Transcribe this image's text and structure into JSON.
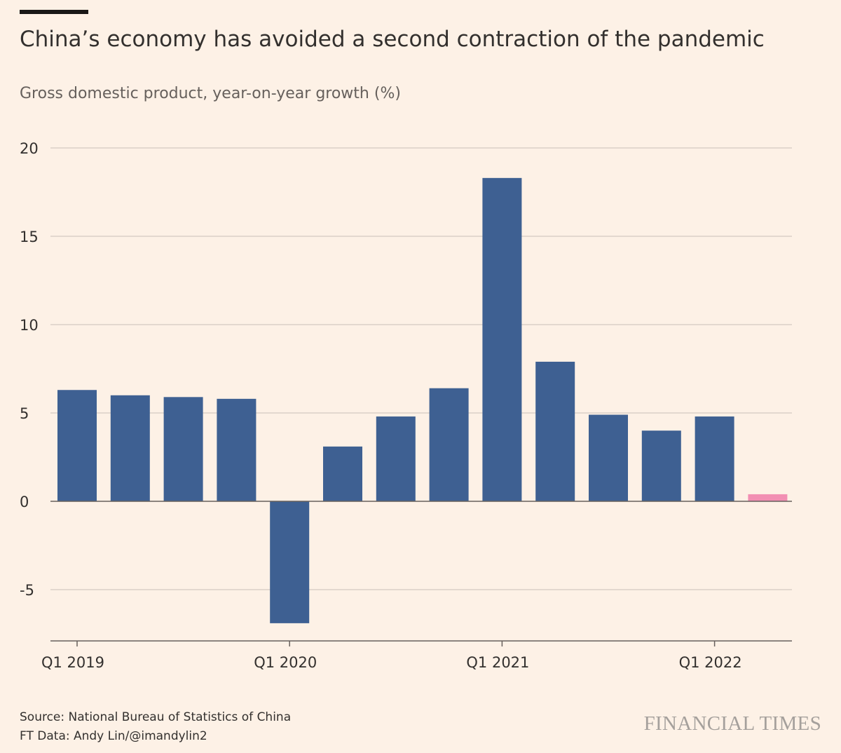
{
  "header": {
    "title": "China’s economy has avoided a second contraction of the pandemic",
    "subtitle": "Gross domestic product, year-on-year growth (%)"
  },
  "footer": {
    "source": "Source: National Bureau of Statistics of China",
    "credit": "FT Data: Andy Lin/@imandylin2",
    "logo": "FINANCIAL TIMES"
  },
  "colors": {
    "background": "#fdf1e6",
    "bar": "#3e6092",
    "latest_bar": "#f28fb3",
    "grid": "#c9c0b8",
    "text": "#33302e",
    "muted_text": "#66605c"
  },
  "chart_data": {
    "type": "bar",
    "title": "China’s economy has avoided a second contraction of the pandemic",
    "subtitle": "Gross domestic product, year-on-year growth (%)",
    "categories": [
      "Q1 2019",
      "Q2 2019",
      "Q3 2019",
      "Q4 2019",
      "Q1 2020",
      "Q2 2020",
      "Q3 2020",
      "Q4 2020",
      "Q1 2021",
      "Q2 2021",
      "Q3 2021",
      "Q4 2021",
      "Q1 2022",
      "Q2 2022"
    ],
    "values": [
      6.3,
      6.0,
      5.9,
      5.8,
      -6.9,
      3.1,
      4.8,
      6.4,
      18.3,
      7.9,
      4.9,
      4.0,
      4.8,
      0.4
    ],
    "highlight_last": true,
    "x_tick_labels": [
      "Q1 2019",
      "Q1 2020",
      "Q1 2021",
      "Q1 2022"
    ],
    "y_ticks": [
      -5,
      0,
      5,
      10,
      15,
      20
    ],
    "ylim": [
      -7.9,
      20
    ],
    "xlabel": "",
    "ylabel": "",
    "grid": true,
    "legend": "none"
  }
}
